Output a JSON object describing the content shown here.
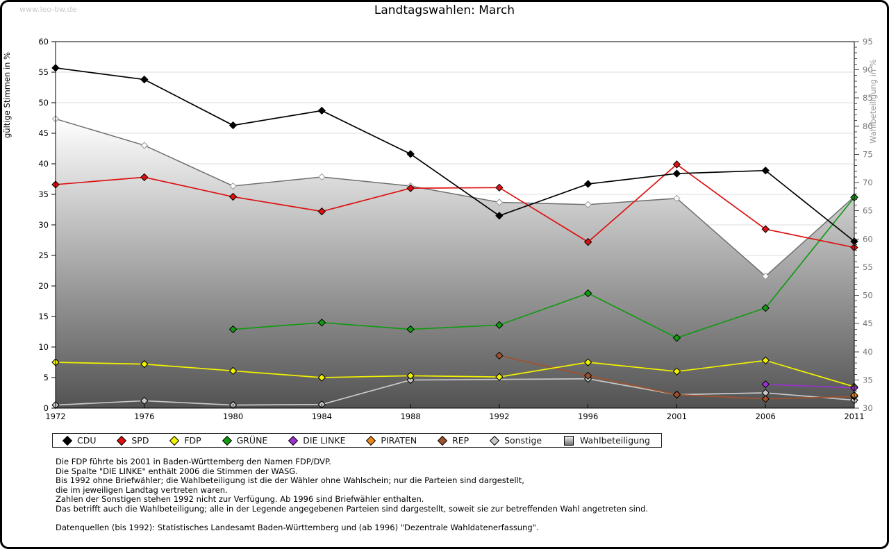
{
  "page": {
    "watermark": "www.leo-bw.de"
  },
  "chart_data": {
    "type": "line",
    "title": "Landtagswahlen: March",
    "x_categories": [
      "1972",
      "1976",
      "1980",
      "1984",
      "1988",
      "1992",
      "1996",
      "2001",
      "2006",
      "2011"
    ],
    "left_axis": {
      "label": "gültige Stimmen in %",
      "min": 0,
      "max": 60,
      "step": 5
    },
    "right_axis": {
      "label": "Wahlbeteiligung in %",
      "min": 30,
      "max": 95,
      "step": 5
    },
    "grid": "horizontal-every-5",
    "legend_position": "bottom-boxed",
    "series": [
      {
        "name": "CDU",
        "color": "#000000",
        "values": [
          55.7,
          53.8,
          46.3,
          48.7,
          41.6,
          31.5,
          36.7,
          38.4,
          38.9,
          27.3
        ]
      },
      {
        "name": "SPD",
        "color": "#dd1111",
        "values": [
          36.6,
          37.8,
          34.6,
          32.2,
          36.0,
          36.1,
          27.2,
          39.9,
          29.3,
          26.3
        ]
      },
      {
        "name": "FDP",
        "color": "#f2f200",
        "values": [
          7.5,
          7.2,
          6.1,
          5.0,
          5.3,
          5.1,
          7.5,
          6.0,
          7.8,
          3.5
        ]
      },
      {
        "name": "GRÜNE",
        "color": "#129a12",
        "values": [
          null,
          null,
          12.9,
          14.0,
          12.9,
          13.6,
          18.8,
          11.5,
          16.4,
          34.5
        ]
      },
      {
        "name": "DIE LINKE",
        "color": "#9933cc",
        "values": [
          null,
          null,
          null,
          null,
          null,
          null,
          null,
          null,
          3.9,
          3.3
        ]
      },
      {
        "name": "PIRATEN",
        "color": "#e8891d",
        "values": [
          null,
          null,
          null,
          null,
          null,
          null,
          null,
          null,
          null,
          2.1
        ]
      },
      {
        "name": "REP",
        "color": "#a0522d",
        "values": [
          null,
          null,
          null,
          null,
          null,
          8.6,
          5.3,
          2.2,
          1.5,
          1.9
        ]
      },
      {
        "name": "Sonstige",
        "color": "#c8c8c8",
        "values": [
          0.5,
          1.2,
          0.5,
          0.6,
          4.6,
          null,
          4.8,
          2.2,
          2.5,
          1.3
        ]
      }
    ],
    "area_series": {
      "name": "Wahlbeteiligung",
      "axis": "right",
      "boundary_color": "#6f6f6f",
      "fill_top": "#ffffff",
      "fill_bottom": "#525252",
      "values": [
        81.3,
        76.6,
        69.4,
        71.0,
        69.4,
        66.5,
        66.1,
        67.2,
        53.4,
        67.5
      ]
    }
  },
  "footer": {
    "lines": [
      "Die FDP führte bis 2001 in Baden-Württemberg den Namen FDP/DVP.",
      "Die Spalte \"DIE LINKE\" enthält 2006 die Stimmen der WASG.",
      "Bis 1992 ohne Briefwähler; die Wahlbeteiligung ist die der Wähler ohne Wahlschein; nur die Parteien sind dargestellt,",
      "die im jeweiligen Landtag vertreten waren.",
      "Zahlen der Sonstigen stehen 1992 nicht zur Verfügung. Ab 1996 sind Briefwähler enthalten.",
      "Das betrifft auch die Wahlbeteiligung; alle in der Legende angegebenen Parteien sind dargestellt, soweit sie zur betreffenden Wahl angetreten sind.",
      "",
      "Datenquellen (bis 1992): Statistisches Landesamt Baden-Württemberg und (ab 1996) \"Dezentrale Wahldatenerfassung\"."
    ]
  }
}
